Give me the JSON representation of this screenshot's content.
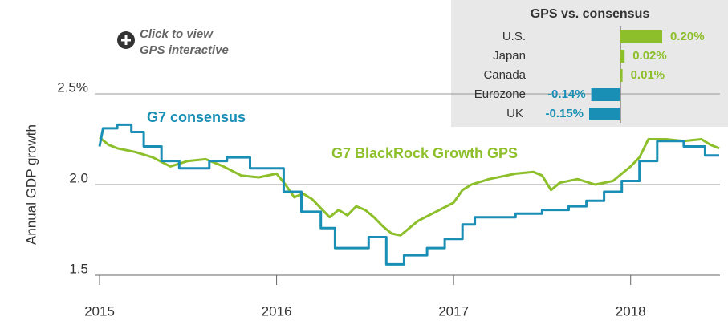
{
  "chart_data": [
    {
      "type": "line",
      "ylabel": "Annual GDP growth",
      "link": [
        "Click to view",
        "GPS interactive"
      ],
      "annotations": [
        {
          "text": "G7 consensus",
          "series": 0
        },
        {
          "text": "G7 BlackRock Growth GPS",
          "series": 1
        }
      ],
      "xlim": [
        2015,
        2018.5
      ],
      "xticks": [
        2015,
        2016,
        2017,
        2018
      ],
      "ylim": [
        1.5,
        2.5
      ],
      "yticks": [
        1.5,
        {
          "value": 2,
          "label": "2.0"
        },
        {
          "value": 2.5,
          "label": "2.5%"
        }
      ],
      "grid": true,
      "series": [
        {
          "name": "G7 consensus",
          "color": "#1a8fb5",
          "x": [
            2015,
            2015.02,
            2015.1,
            2015.1,
            2015.18,
            2015.18,
            2015.25,
            2015.25,
            2015.35,
            2015.35,
            2015.45,
            2015.45,
            2015.62,
            2015.62,
            2015.72,
            2015.72,
            2015.85,
            2015.85,
            2016.04,
            2016.04,
            2016.14,
            2016.14,
            2016.25,
            2016.25,
            2016.33,
            2016.33,
            2016.52,
            2016.52,
            2016.62,
            2016.62,
            2016.72,
            2016.72,
            2016.85,
            2016.85,
            2016.95,
            2016.95,
            2017.05,
            2017.05,
            2017.12,
            2017.12,
            2017.35,
            2017.35,
            2017.5,
            2017.5,
            2017.65,
            2017.65,
            2017.75,
            2017.75,
            2017.85,
            2017.85,
            2017.95,
            2017.95,
            2018.05,
            2018.05,
            2018.15,
            2018.15,
            2018.3,
            2018.3,
            2018.42,
            2018.42,
            2018.5
          ],
          "values": [
            2.21,
            2.31,
            2.31,
            2.33,
            2.33,
            2.29,
            2.29,
            2.21,
            2.21,
            2.13,
            2.13,
            2.09,
            2.09,
            2.13,
            2.13,
            2.15,
            2.15,
            2.09,
            2.09,
            1.96,
            1.96,
            1.85,
            1.85,
            1.76,
            1.76,
            1.65,
            1.65,
            1.71,
            1.71,
            1.56,
            1.56,
            1.61,
            1.61,
            1.65,
            1.65,
            1.7,
            1.7,
            1.78,
            1.78,
            1.82,
            1.82,
            1.84,
            1.84,
            1.86,
            1.86,
            1.88,
            1.88,
            1.91,
            1.91,
            1.96,
            1.96,
            2.02,
            2.02,
            2.13,
            2.13,
            2.24,
            2.24,
            2.21,
            2.21,
            2.16,
            2.16
          ]
        },
        {
          "name": "G7 BlackRock Growth GPS",
          "color": "#8cbf2a",
          "x": [
            2015,
            2015.05,
            2015.1,
            2015.2,
            2015.3,
            2015.4,
            2015.5,
            2015.6,
            2015.7,
            2015.8,
            2015.9,
            2016,
            2016.05,
            2016.1,
            2016.15,
            2016.2,
            2016.25,
            2016.3,
            2016.35,
            2016.4,
            2016.45,
            2016.5,
            2016.55,
            2016.6,
            2016.65,
            2016.7,
            2016.75,
            2016.8,
            2016.9,
            2017,
            2017.05,
            2017.1,
            2017.2,
            2017.3,
            2017.35,
            2017.45,
            2017.5,
            2017.55,
            2017.6,
            2017.7,
            2017.8,
            2017.9,
            2018,
            2018.05,
            2018.1,
            2018.2,
            2018.3,
            2018.4,
            2018.45,
            2018.5
          ],
          "values": [
            2.26,
            2.22,
            2.2,
            2.18,
            2.15,
            2.1,
            2.13,
            2.14,
            2.1,
            2.05,
            2.04,
            2.06,
            2,
            1.93,
            1.95,
            1.92,
            1.87,
            1.82,
            1.86,
            1.83,
            1.88,
            1.86,
            1.82,
            1.77,
            1.73,
            1.72,
            1.76,
            1.8,
            1.85,
            1.9,
            1.97,
            2,
            2.03,
            2.05,
            2.06,
            2.07,
            2.05,
            1.97,
            2.01,
            2.03,
            2,
            2.02,
            2.1,
            2.15,
            2.25,
            2.25,
            2.24,
            2.25,
            2.22,
            2.2
          ]
        }
      ]
    },
    {
      "type": "hbar",
      "title": "GPS vs. consensus",
      "categories": [
        "U.S.",
        "Japan",
        "Canada",
        "Eurozone",
        "UK"
      ],
      "values": [
        0.2,
        0.02,
        0.01,
        -0.14,
        -0.15
      ],
      "value_labels": [
        "0.20%",
        "0.02%",
        "0.01%",
        "-0.14%",
        "-0.15%"
      ],
      "positive_color": "#8cbf2a",
      "negative_color": "#1a8fb5"
    }
  ]
}
